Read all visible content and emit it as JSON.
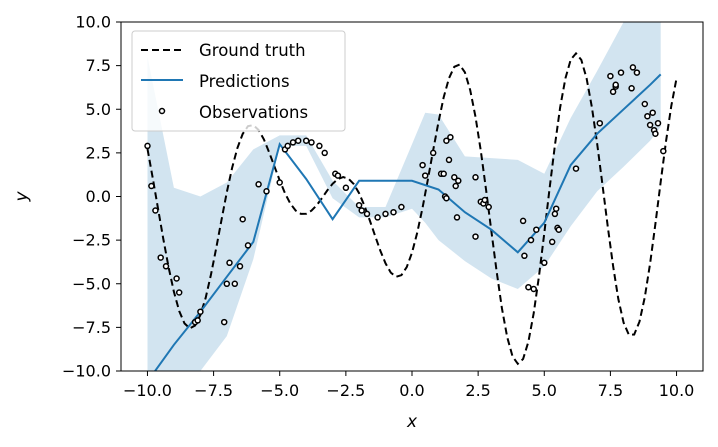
{
  "chart_data": {
    "type": "line",
    "title": "",
    "xlabel": "x",
    "ylabel": "y",
    "xlim": [
      -11.0,
      11.0
    ],
    "ylim": [
      -10.0,
      10.0
    ],
    "xticks": [
      -10.0,
      -7.5,
      -5.0,
      -2.5,
      0.0,
      2.5,
      5.0,
      7.5,
      10.0
    ],
    "xtick_labels": [
      "−10.0",
      "−7.5",
      "−5.0",
      "−2.5",
      "0.0",
      "2.5",
      "5.0",
      "7.5",
      "10.0"
    ],
    "yticks": [
      -10.0,
      -7.5,
      -5.0,
      -2.5,
      0.0,
      2.5,
      5.0,
      7.5,
      10.0
    ],
    "ytick_labels": [
      "−10.0",
      "−7.5",
      "−5.0",
      "−2.5",
      "0.0",
      "2.5",
      "5.0",
      "7.5",
      "10.0"
    ],
    "grid": false,
    "legend_position": "upper-left",
    "colors": {
      "ground_truth": "#000000",
      "predictions": "#1f77b4",
      "band": "#1f77b4",
      "observations": "#000000"
    },
    "series": [
      {
        "name": "Ground truth",
        "kind": "function",
        "style": "dashed",
        "x": [
          -10.0,
          -9.8,
          -9.6,
          -9.4,
          -9.2,
          -9.0,
          -8.8,
          -8.6,
          -8.4,
          -8.2,
          -8.0,
          -7.8,
          -7.6,
          -7.4,
          -7.2,
          -7.0,
          -6.8,
          -6.6,
          -6.4,
          -6.2,
          -6.0,
          -5.8,
          -5.6,
          -5.4,
          -5.2,
          -5.0,
          -4.8,
          -4.6,
          -4.4,
          -4.2,
          -4.0,
          -3.8,
          -3.6,
          -3.4,
          -3.2,
          -3.0,
          -2.8,
          -2.6,
          -2.4,
          -2.2,
          -2.0,
          -1.8,
          -1.6,
          -1.4,
          -1.2,
          -1.0,
          -0.8,
          -0.6,
          -0.4,
          -0.2,
          0.0,
          0.2,
          0.4,
          0.6,
          0.8,
          1.0,
          1.2,
          1.4,
          1.6,
          1.8,
          2.0,
          2.2,
          2.4,
          2.6,
          2.8,
          3.0,
          3.2,
          3.4,
          3.6,
          3.8,
          4.0,
          4.2,
          4.4,
          4.6,
          4.8,
          5.0,
          5.2,
          5.4,
          5.6,
          5.8,
          6.0,
          6.2,
          6.4,
          6.6,
          6.8,
          7.0,
          7.2,
          7.4,
          7.6,
          7.8,
          8.0,
          8.2,
          8.4,
          8.6,
          8.8,
          9.0,
          9.2,
          9.4,
          9.6,
          9.8,
          10.0
        ],
        "y": [
          2.72,
          1.07,
          -0.68,
          -2.43,
          -4.06,
          -5.46,
          -6.56,
          -7.27,
          -7.56,
          -7.39,
          -6.79,
          -5.8,
          -4.49,
          -2.96,
          -1.34,
          0.24,
          1.64,
          2.78,
          3.59,
          4.03,
          4.09,
          3.81,
          3.27,
          2.54,
          1.73,
          0.92,
          0.19,
          -0.4,
          -0.8,
          -1.0,
          -0.99,
          -0.81,
          -0.49,
          -0.08,
          0.35,
          0.73,
          1.0,
          1.11,
          1.02,
          0.71,
          0.19,
          -0.52,
          -1.35,
          -2.24,
          -3.1,
          -3.83,
          -4.36,
          -4.6,
          -4.51,
          -4.05,
          -3.22,
          -2.06,
          -0.63,
          0.98,
          2.66,
          4.27,
          5.69,
          6.78,
          7.43,
          7.56,
          7.12,
          6.1,
          4.57,
          2.62,
          0.37,
          -2.0,
          -4.32,
          -6.4,
          -8.06,
          -9.16,
          -9.59,
          -9.31,
          -8.32,
          -6.69,
          -4.56,
          -2.1,
          0.47,
          2.93,
          5.09,
          6.77,
          7.84,
          8.2,
          7.83,
          6.77,
          5.11,
          3.01,
          0.66,
          -1.74,
          -3.98,
          -5.87,
          -7.23,
          -7.93,
          -7.91,
          -7.17,
          -5.77,
          -3.84,
          -1.57,
          0.84,
          3.16,
          5.19,
          6.76
        ]
      },
      {
        "name": "Predictions",
        "kind": "line",
        "x": [
          -10.0,
          -9.0,
          -8.0,
          -7.0,
          -6.0,
          -5.0,
          -4.0,
          -3.0,
          -2.0,
          -1.0,
          0.0,
          1.0,
          2.0,
          3.0,
          4.0,
          5.0,
          6.0,
          7.0,
          8.0,
          9.0,
          9.4
        ],
        "y": [
          -10.6,
          -8.5,
          -6.6,
          -4.6,
          -2.6,
          3.0,
          1.0,
          -1.3,
          0.9,
          0.9,
          0.9,
          0.4,
          -0.9,
          -1.9,
          -3.2,
          -1.5,
          1.8,
          3.6,
          5.0,
          6.4,
          7.0
        ]
      },
      {
        "name": "",
        "kind": "band",
        "x": [
          -10.0,
          -9.0,
          -8.0,
          -7.0,
          -6.0,
          -5.0,
          -4.0,
          -3.0,
          -2.0,
          -1.0,
          0.0,
          0.5,
          1.0,
          2.0,
          3.0,
          4.0,
          5.0,
          6.0,
          7.0,
          8.0,
          9.0,
          9.4
        ],
        "lower": [
          -10.0,
          -10.0,
          -10.0,
          -8.0,
          -3.6,
          2.9,
          2.9,
          -0.1,
          -1.2,
          -1.2,
          -0.7,
          -1.5,
          -2.5,
          -3.7,
          -4.7,
          -5.3,
          -4.0,
          -1.7,
          0.3,
          1.7,
          3.2,
          4.0
        ],
        "upper": [
          8.0,
          0.5,
          0.0,
          0.8,
          2.7,
          3.5,
          3.5,
          0.9,
          -0.6,
          -0.6,
          3.0,
          4.8,
          4.7,
          2.3,
          2.2,
          2.1,
          1.3,
          4.5,
          7.2,
          10.0,
          10.0,
          10.0
        ]
      },
      {
        "name": "Observations",
        "kind": "scatter",
        "marker": "open-circle",
        "points": [
          [
            -10.0,
            2.9
          ],
          [
            -9.85,
            0.6
          ],
          [
            -9.7,
            -0.8
          ],
          [
            -9.5,
            -3.5
          ],
          [
            -9.3,
            -4.0
          ],
          [
            -8.9,
            -4.7
          ],
          [
            -8.8,
            -5.5
          ],
          [
            -8.2,
            -7.2
          ],
          [
            -8.1,
            -7.1
          ],
          [
            -8.0,
            -6.6
          ],
          [
            -7.1,
            -7.2
          ],
          [
            -7.0,
            -5.0
          ],
          [
            -6.9,
            -3.8
          ],
          [
            -6.7,
            -5.0
          ],
          [
            -6.5,
            -4.0
          ],
          [
            -6.4,
            -1.3
          ],
          [
            -6.2,
            -2.8
          ],
          [
            -5.8,
            0.7
          ],
          [
            -5.5,
            0.3
          ],
          [
            -5.0,
            0.8
          ],
          [
            -4.8,
            2.7
          ],
          [
            -4.7,
            2.9
          ],
          [
            -4.5,
            3.1
          ],
          [
            -4.3,
            3.2
          ],
          [
            -4.0,
            3.2
          ],
          [
            -3.8,
            3.1
          ],
          [
            -3.5,
            2.9
          ],
          [
            -3.3,
            2.5
          ],
          [
            -2.9,
            1.3
          ],
          [
            -2.8,
            1.2
          ],
          [
            -2.5,
            0.5
          ],
          [
            -2.0,
            -0.5
          ],
          [
            -1.9,
            -0.8
          ],
          [
            -1.7,
            -1.0
          ],
          [
            -1.3,
            -1.2
          ],
          [
            -1.0,
            -1.0
          ],
          [
            -0.7,
            -0.9
          ],
          [
            -0.4,
            -0.6
          ],
          [
            0.4,
            1.8
          ],
          [
            0.5,
            1.2
          ],
          [
            0.8,
            2.5
          ],
          [
            1.1,
            1.3
          ],
          [
            1.2,
            1.3
          ],
          [
            1.25,
            0.0
          ],
          [
            1.3,
            -0.1
          ],
          [
            1.3,
            3.2
          ],
          [
            1.4,
            2.1
          ],
          [
            1.45,
            3.4
          ],
          [
            1.6,
            1.1
          ],
          [
            1.65,
            0.6
          ],
          [
            1.7,
            -1.2
          ],
          [
            1.75,
            0.9
          ],
          [
            2.4,
            1.1
          ],
          [
            2.4,
            -2.3
          ],
          [
            2.6,
            -0.3
          ],
          [
            2.7,
            -0.4
          ],
          [
            2.75,
            -0.2
          ],
          [
            2.9,
            -0.6
          ],
          [
            4.2,
            -1.4
          ],
          [
            4.25,
            -3.4
          ],
          [
            4.4,
            -5.2
          ],
          [
            4.5,
            -2.5
          ],
          [
            4.6,
            -5.3
          ],
          [
            4.7,
            -1.9
          ],
          [
            5.0,
            -3.8
          ],
          [
            5.3,
            -2.6
          ],
          [
            5.4,
            -1.0
          ],
          [
            5.45,
            -0.7
          ],
          [
            5.5,
            -1.8
          ],
          [
            5.55,
            -1.9
          ],
          [
            6.2,
            1.6
          ],
          [
            7.1,
            4.2
          ],
          [
            7.5,
            6.9
          ],
          [
            7.6,
            6.0
          ],
          [
            7.7,
            6.3
          ],
          [
            7.7,
            6.4
          ],
          [
            7.9,
            7.1
          ],
          [
            8.3,
            6.2
          ],
          [
            8.35,
            7.4
          ],
          [
            8.5,
            7.1
          ],
          [
            8.8,
            5.3
          ],
          [
            8.9,
            4.6
          ],
          [
            9.0,
            4.1
          ],
          [
            9.1,
            4.8
          ],
          [
            9.15,
            3.8
          ],
          [
            9.2,
            3.6
          ],
          [
            9.3,
            4.2
          ],
          [
            9.5,
            2.6
          ]
        ]
      }
    ]
  }
}
